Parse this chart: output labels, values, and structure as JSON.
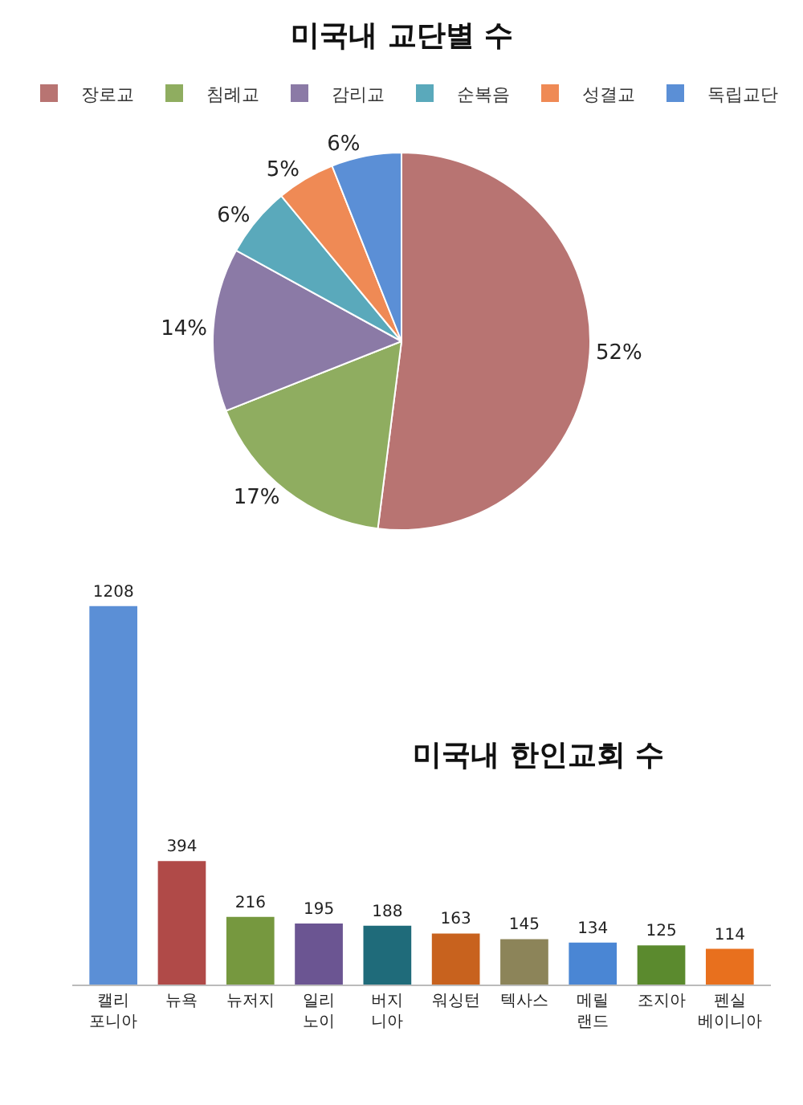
{
  "chart_data": [
    {
      "type": "pie",
      "title": "미국내 교단별 수",
      "categories": [
        "장로교",
        "침례교",
        "감리교",
        "순복음",
        "성결교",
        "독립교단"
      ],
      "values": [
        52,
        17,
        14,
        6,
        5,
        6
      ],
      "colors": [
        "#b87472",
        "#8fad60",
        "#8b7aa6",
        "#5aa9bb",
        "#ef8a55",
        "#5b8fd6"
      ],
      "value_labels": [
        "52%",
        "17%",
        "14%",
        "6%",
        "5%",
        "6%"
      ],
      "legend": "top"
    },
    {
      "type": "bar",
      "title": "미국내 한인교회 수",
      "categories": [
        "캘리\n포니아",
        "뉴욕",
        "뉴저지",
        "일리\n노이",
        "버지\n니아",
        "워싱턴",
        "텍사스",
        "메릴\n랜드",
        "조지아",
        "펜실\n베이니아"
      ],
      "values": [
        1208,
        394,
        216,
        195,
        188,
        163,
        145,
        134,
        125,
        114
      ],
      "colors": [
        "#5b8fd6",
        "#b04a48",
        "#76983f",
        "#6b5592",
        "#1f6b7a",
        "#c8621e",
        "#8c8459",
        "#4a86d4",
        "#5b8a2e",
        "#e8701e"
      ],
      "data_labels": true,
      "legend": false,
      "tick_labels": "x"
    }
  ]
}
